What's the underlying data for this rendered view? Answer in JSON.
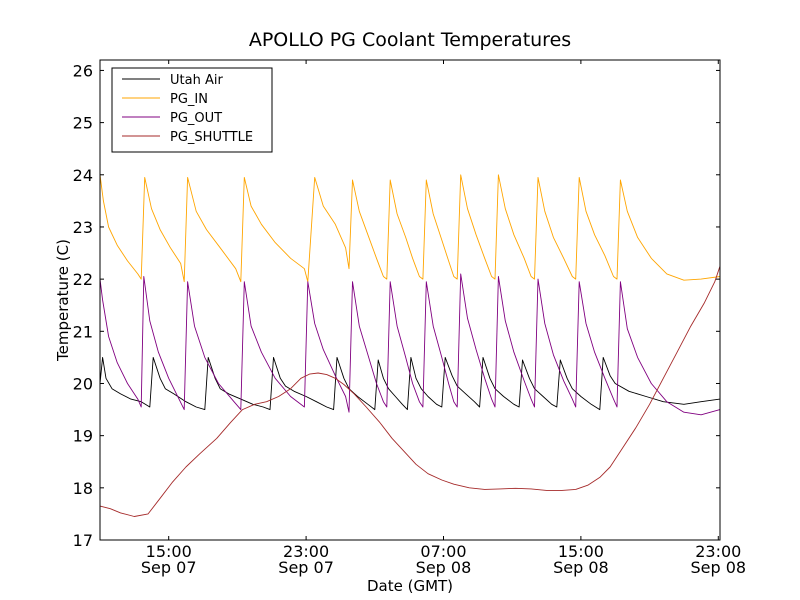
{
  "chart_data": {
    "type": "line",
    "title": "APOLLO PG Coolant Temperatures",
    "xlabel": "Date (GMT)",
    "ylabel": "Temperature (C)",
    "x_unit": "hours since Sep 07 11:00 GMT",
    "xlim": [
      0,
      36.1
    ],
    "ylim": [
      17,
      26.2
    ],
    "yticks": [
      17,
      18,
      19,
      20,
      21,
      22,
      23,
      24,
      25,
      26
    ],
    "xticks": [
      {
        "x": 4,
        "time": "15:00",
        "date": "Sep 07"
      },
      {
        "x": 12,
        "time": "23:00",
        "date": "Sep 07"
      },
      {
        "x": 20,
        "time": "07:00",
        "date": "Sep 08"
      },
      {
        "x": 28,
        "time": "15:00",
        "date": "Sep 08"
      },
      {
        "x": 36,
        "time": "23:00",
        "date": "Sep 08"
      }
    ],
    "grid": false,
    "legend_position": "upper-left",
    "series": [
      {
        "name": "Utah Air",
        "color": "#000000",
        "x": [
          0,
          0.15,
          0.35,
          0.7,
          1.2,
          1.8,
          2.4,
          2.9,
          3.1,
          3.5,
          3.8,
          4.3,
          5.0,
          5.6,
          6.1,
          6.3,
          6.7,
          7.0,
          7.5,
          8.2,
          8.9,
          9.5,
          9.9,
          10.1,
          10.5,
          10.8,
          11.3,
          12.0,
          12.6,
          13.2,
          13.6,
          13.8,
          14.2,
          14.5,
          15.0,
          15.6,
          16.0,
          16.2,
          16.5,
          16.8,
          17.2,
          17.6,
          17.9,
          18.1,
          18.4,
          18.7,
          19.1,
          19.6,
          19.9,
          20.1,
          20.5,
          20.8,
          21.3,
          21.8,
          22.1,
          22.3,
          22.7,
          23.0,
          23.5,
          24.1,
          24.4,
          24.6,
          25.0,
          25.3,
          25.8,
          26.3,
          26.6,
          26.8,
          27.2,
          27.5,
          28.0,
          28.6,
          29.1,
          29.3,
          29.7,
          30.0,
          30.8,
          31.8,
          32.8,
          34.0,
          35.0,
          36.1
        ],
        "y": [
          20.0,
          20.5,
          20.1,
          19.9,
          19.8,
          19.7,
          19.65,
          19.55,
          20.5,
          20.1,
          19.9,
          19.8,
          19.65,
          19.55,
          19.5,
          20.5,
          20.1,
          19.9,
          19.8,
          19.7,
          19.6,
          19.55,
          19.5,
          20.5,
          20.1,
          19.95,
          19.85,
          19.75,
          19.65,
          19.55,
          19.5,
          20.5,
          20.1,
          19.9,
          19.75,
          19.6,
          19.5,
          20.45,
          20.1,
          19.9,
          19.75,
          19.6,
          19.5,
          20.5,
          20.1,
          19.9,
          19.75,
          19.6,
          19.55,
          20.5,
          20.15,
          19.95,
          19.8,
          19.65,
          19.55,
          20.5,
          20.1,
          19.9,
          19.75,
          19.6,
          19.55,
          20.45,
          20.1,
          19.9,
          19.75,
          19.6,
          19.55,
          20.45,
          20.1,
          19.9,
          19.75,
          19.6,
          19.5,
          20.5,
          20.15,
          20.0,
          19.85,
          19.75,
          19.65,
          19.6,
          19.65,
          19.7
        ]
      },
      {
        "name": "PG_IN",
        "color": "#ffa500",
        "x": [
          0,
          0.2,
          0.5,
          1.0,
          1.6,
          2.2,
          2.4,
          2.6,
          3.0,
          3.5,
          4.1,
          4.7,
          4.9,
          5.1,
          5.6,
          6.2,
          7.0,
          7.9,
          8.2,
          8.4,
          8.8,
          9.4,
          10.2,
          11.1,
          11.9,
          12.1,
          12.5,
          13.0,
          13.7,
          14.3,
          14.5,
          14.7,
          15.1,
          15.6,
          16.1,
          16.5,
          16.7,
          16.9,
          17.3,
          17.8,
          18.2,
          18.6,
          18.8,
          19.0,
          19.4,
          19.9,
          20.3,
          20.6,
          20.8,
          21.0,
          21.4,
          21.9,
          22.4,
          22.8,
          23.0,
          23.2,
          23.6,
          24.1,
          24.7,
          25.1,
          25.3,
          25.5,
          25.9,
          26.4,
          27.0,
          27.5,
          27.7,
          27.9,
          28.3,
          28.8,
          29.4,
          29.9,
          30.1,
          30.3,
          30.7,
          31.3,
          32.1,
          33.0,
          34.0,
          35.0,
          36.1
        ],
        "y": [
          24.0,
          23.5,
          23.0,
          22.65,
          22.35,
          22.1,
          22.0,
          23.95,
          23.35,
          22.95,
          22.6,
          22.3,
          21.95,
          23.95,
          23.3,
          22.95,
          22.6,
          22.2,
          21.95,
          23.95,
          23.4,
          23.05,
          22.7,
          22.4,
          22.2,
          21.95,
          23.95,
          23.4,
          23.05,
          22.6,
          22.2,
          23.9,
          23.3,
          22.85,
          22.4,
          22.05,
          22.0,
          23.9,
          23.25,
          22.8,
          22.4,
          22.05,
          22.0,
          23.9,
          23.25,
          22.75,
          22.35,
          22.05,
          22.0,
          24.0,
          23.35,
          22.85,
          22.4,
          22.05,
          22.0,
          24.0,
          23.35,
          22.85,
          22.4,
          22.05,
          22.0,
          23.95,
          23.3,
          22.8,
          22.4,
          22.05,
          22.0,
          23.95,
          23.3,
          22.85,
          22.45,
          22.05,
          22.0,
          23.9,
          23.3,
          22.8,
          22.4,
          22.1,
          21.98,
          22.0,
          22.05
        ]
      },
      {
        "name": "PG_OUT",
        "color": "#800080",
        "x": [
          0,
          0.15,
          0.5,
          1.0,
          1.6,
          2.2,
          2.4,
          2.55,
          2.9,
          3.4,
          4.0,
          4.6,
          4.9,
          5.1,
          5.5,
          6.1,
          6.9,
          7.8,
          8.2,
          8.4,
          8.8,
          9.4,
          10.2,
          11.1,
          11.9,
          12.1,
          12.5,
          13.0,
          13.7,
          14.3,
          14.5,
          14.7,
          15.1,
          15.6,
          16.1,
          16.5,
          16.7,
          16.9,
          17.3,
          17.8,
          18.2,
          18.6,
          18.8,
          19.0,
          19.4,
          19.9,
          20.3,
          20.6,
          20.8,
          21.0,
          21.4,
          21.9,
          22.4,
          22.8,
          23.0,
          23.2,
          23.6,
          24.1,
          24.7,
          25.1,
          25.3,
          25.5,
          25.9,
          26.4,
          27.0,
          27.5,
          27.7,
          27.9,
          28.3,
          28.8,
          29.4,
          29.9,
          30.1,
          30.3,
          30.7,
          31.3,
          32.1,
          33.0,
          34.0,
          35.0,
          36.1
        ],
        "y": [
          22.0,
          21.6,
          20.9,
          20.4,
          20.0,
          19.7,
          19.55,
          22.05,
          21.2,
          20.6,
          20.1,
          19.7,
          19.5,
          21.95,
          21.1,
          20.5,
          20.0,
          19.65,
          19.5,
          21.95,
          21.1,
          20.6,
          20.1,
          19.75,
          19.55,
          21.95,
          21.15,
          20.65,
          20.15,
          19.75,
          19.45,
          21.95,
          21.1,
          20.55,
          20.0,
          19.65,
          19.55,
          21.95,
          21.1,
          20.5,
          20.0,
          19.65,
          19.55,
          21.95,
          21.1,
          20.5,
          20.0,
          19.65,
          19.55,
          22.1,
          21.25,
          20.65,
          20.1,
          19.7,
          19.55,
          22.05,
          21.2,
          20.6,
          20.05,
          19.7,
          19.55,
          22.0,
          21.15,
          20.55,
          20.05,
          19.7,
          19.55,
          21.95,
          21.15,
          20.6,
          20.1,
          19.7,
          19.55,
          21.95,
          21.05,
          20.5,
          20.0,
          19.65,
          19.45,
          19.4,
          19.5
        ]
      },
      {
        "name": "PG_SHUTTLE",
        "color": "#a52a2a",
        "x": [
          0,
          0.6,
          1.2,
          2.0,
          2.8,
          3.5,
          4.2,
          5.0,
          5.8,
          6.8,
          7.6,
          8.3,
          9.0,
          9.7,
          10.4,
          11.1,
          11.7,
          12.2,
          12.7,
          13.2,
          13.7,
          14.2,
          14.8,
          15.5,
          16.3,
          17.0,
          17.7,
          18.4,
          19.1,
          19.9,
          20.6,
          21.5,
          22.4,
          23.3,
          24.2,
          25.1,
          26.0,
          26.9,
          27.7,
          28.4,
          29.1,
          29.7,
          30.4,
          31.2,
          32.0,
          32.8,
          33.6,
          34.4,
          35.2,
          35.8,
          36.1
        ],
        "y": [
          17.65,
          17.6,
          17.52,
          17.45,
          17.5,
          17.8,
          18.1,
          18.4,
          18.65,
          18.95,
          19.25,
          19.5,
          19.6,
          19.65,
          19.75,
          19.9,
          20.1,
          20.18,
          20.2,
          20.17,
          20.1,
          19.98,
          19.8,
          19.55,
          19.25,
          18.95,
          18.7,
          18.45,
          18.27,
          18.15,
          18.07,
          18.0,
          17.97,
          17.98,
          17.99,
          17.98,
          17.95,
          17.95,
          17.97,
          18.05,
          18.2,
          18.4,
          18.75,
          19.15,
          19.6,
          20.1,
          20.6,
          21.1,
          21.55,
          21.95,
          22.25
        ]
      }
    ]
  }
}
